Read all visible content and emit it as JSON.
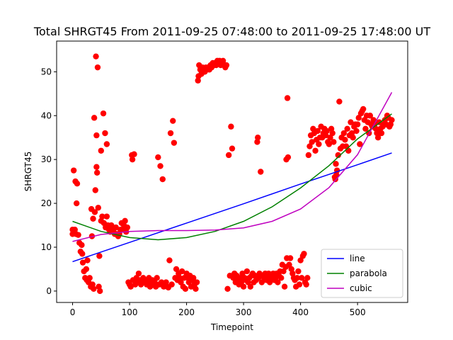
{
  "chart_data": {
    "type": "scatter",
    "title": "Total SHRGT45 From 2011-09-25 07:48:00 to 2011-09-25 17:48:00 UT",
    "xlabel": "Timepoint",
    "ylabel": "SHRGT45",
    "xlim": [
      -28,
      588
    ],
    "ylim": [
      -2.6,
      57
    ],
    "xticks": [
      0,
      100,
      200,
      300,
      400,
      500
    ],
    "yticks": [
      0,
      10,
      20,
      30,
      40,
      50
    ],
    "grid": false,
    "legend_position": "lower right",
    "points_color": "#ff0000",
    "series": [
      {
        "name": "line",
        "color": "#0000ff",
        "x": [
          0,
          100,
          200,
          300,
          400,
          500,
          560
        ],
        "y": [
          6.7,
          11.1,
          15.5,
          19.9,
          24.4,
          28.8,
          31.5
        ]
      },
      {
        "name": "parabola",
        "color": "#008000",
        "x": [
          0,
          50,
          100,
          150,
          200,
          250,
          300,
          350,
          400,
          450,
          500,
          560
        ],
        "y": [
          15.9,
          13.6,
          12.2,
          11.7,
          12.2,
          13.6,
          15.9,
          19.2,
          23.5,
          28.6,
          34.7,
          40.4
        ]
      },
      {
        "name": "cubic",
        "color": "#bf00bf",
        "x": [
          0,
          50,
          100,
          150,
          200,
          250,
          300,
          350,
          400,
          450,
          500,
          560
        ],
        "y": [
          11.3,
          12.9,
          13.6,
          13.8,
          13.8,
          13.9,
          14.4,
          15.9,
          18.7,
          23.6,
          31.1,
          45.3
        ]
      }
    ],
    "scatter_points": [
      [
        0,
        14
      ],
      [
        0,
        13
      ],
      [
        2,
        27.5
      ],
      [
        4,
        14
      ],
      [
        5,
        25
      ],
      [
        6,
        13
      ],
      [
        7,
        20
      ],
      [
        8,
        24.5
      ],
      [
        10,
        12.8
      ],
      [
        12,
        11
      ],
      [
        14,
        9
      ],
      [
        16,
        10.5
      ],
      [
        17,
        8.5
      ],
      [
        18,
        6.5
      ],
      [
        20,
        4.5
      ],
      [
        22,
        3
      ],
      [
        24,
        5
      ],
      [
        25,
        2.5
      ],
      [
        26,
        7
      ],
      [
        28,
        2
      ],
      [
        30,
        3
      ],
      [
        32,
        1
      ],
      [
        33,
        18.7
      ],
      [
        34,
        12.5
      ],
      [
        35,
        1.5
      ],
      [
        36,
        16.5
      ],
      [
        37,
        0.5
      ],
      [
        38,
        39.5
      ],
      [
        39,
        18
      ],
      [
        40,
        23
      ],
      [
        41,
        53.5
      ],
      [
        42,
        28.3
      ],
      [
        42,
        35.5
      ],
      [
        43,
        27
      ],
      [
        44,
        51
      ],
      [
        45,
        19
      ],
      [
        46,
        1
      ],
      [
        47,
        8
      ],
      [
        48,
        0
      ],
      [
        50,
        32
      ],
      [
        50,
        16
      ],
      [
        52,
        17
      ],
      [
        54,
        40.5
      ],
      [
        55,
        15.5
      ],
      [
        57,
        36
      ],
      [
        58,
        14.5
      ],
      [
        60,
        33.5
      ],
      [
        60,
        17
      ],
      [
        62,
        15
      ],
      [
        64,
        14
      ],
      [
        66,
        13.5
      ],
      [
        68,
        15
      ],
      [
        70,
        14
      ],
      [
        72,
        13.5
      ],
      [
        74,
        13
      ],
      [
        76,
        14.5
      ],
      [
        78,
        13
      ],
      [
        80,
        12.5
      ],
      [
        82,
        13
      ],
      [
        84,
        14
      ],
      [
        86,
        15.5
      ],
      [
        88,
        14
      ],
      [
        90,
        15
      ],
      [
        92,
        16
      ],
      [
        94,
        13.5
      ],
      [
        96,
        14.5
      ],
      [
        98,
        2
      ],
      [
        100,
        1.5
      ],
      [
        102,
        1
      ],
      [
        104,
        31
      ],
      [
        105,
        30
      ],
      [
        106,
        2.5
      ],
      [
        108,
        31.2
      ],
      [
        110,
        1.5
      ],
      [
        112,
        3
      ],
      [
        114,
        2
      ],
      [
        116,
        4
      ],
      [
        118,
        2.5
      ],
      [
        120,
        1.5
      ],
      [
        122,
        2
      ],
      [
        124,
        3
      ],
      [
        126,
        2
      ],
      [
        128,
        2.5
      ],
      [
        130,
        1.5
      ],
      [
        132,
        2
      ],
      [
        134,
        3
      ],
      [
        136,
        1
      ],
      [
        138,
        2
      ],
      [
        140,
        2.5
      ],
      [
        142,
        1.5
      ],
      [
        144,
        2
      ],
      [
        146,
        1
      ],
      [
        148,
        3
      ],
      [
        150,
        30.5
      ],
      [
        152,
        1.5
      ],
      [
        154,
        28.5
      ],
      [
        156,
        2
      ],
      [
        158,
        25.5
      ],
      [
        160,
        1
      ],
      [
        162,
        1.5
      ],
      [
        164,
        2
      ],
      [
        166,
        1
      ],
      [
        168,
        0.8
      ],
      [
        170,
        7
      ],
      [
        172,
        36
      ],
      [
        174,
        1.5
      ],
      [
        176,
        38.8
      ],
      [
        178,
        33.8
      ],
      [
        180,
        3
      ],
      [
        182,
        5
      ],
      [
        184,
        2.5
      ],
      [
        186,
        4
      ],
      [
        188,
        3
      ],
      [
        190,
        2
      ],
      [
        192,
        4.5
      ],
      [
        194,
        1
      ],
      [
        196,
        3
      ],
      [
        198,
        0.5
      ],
      [
        200,
        4
      ],
      [
        202,
        3
      ],
      [
        204,
        2
      ],
      [
        206,
        3.5
      ],
      [
        208,
        1
      ],
      [
        210,
        2.5
      ],
      [
        212,
        3
      ],
      [
        214,
        1.5
      ],
      [
        216,
        0.5
      ],
      [
        218,
        2
      ],
      [
        220,
        48
      ],
      [
        221,
        49
      ],
      [
        222,
        51.5
      ],
      [
        224,
        50.5
      ],
      [
        226,
        49.5
      ],
      [
        228,
        51
      ],
      [
        230,
        50.5
      ],
      [
        232,
        50
      ],
      [
        234,
        51
      ],
      [
        236,
        50.5
      ],
      [
        238,
        51
      ],
      [
        240,
        50.5
      ],
      [
        242,
        51.5
      ],
      [
        244,
        51
      ],
      [
        246,
        52
      ],
      [
        248,
        51.5
      ],
      [
        250,
        52
      ],
      [
        252,
        51.5
      ],
      [
        254,
        52.5
      ],
      [
        256,
        52
      ],
      [
        258,
        52.5
      ],
      [
        260,
        51.5
      ],
      [
        262,
        52
      ],
      [
        264,
        52.5
      ],
      [
        266,
        51.5
      ],
      [
        268,
        51
      ],
      [
        270,
        51.5
      ],
      [
        272,
        0.5
      ],
      [
        274,
        31
      ],
      [
        276,
        3.5
      ],
      [
        278,
        37.5
      ],
      [
        280,
        32.5
      ],
      [
        282,
        3
      ],
      [
        284,
        4
      ],
      [
        286,
        2
      ],
      [
        288,
        3.5
      ],
      [
        290,
        2.5
      ],
      [
        292,
        1.5
      ],
      [
        294,
        3
      ],
      [
        296,
        2
      ],
      [
        298,
        4
      ],
      [
        300,
        1
      ],
      [
        302,
        3
      ],
      [
        304,
        2.5
      ],
      [
        306,
        4.5
      ],
      [
        308,
        2
      ],
      [
        310,
        3
      ],
      [
        312,
        1
      ],
      [
        314,
        3.5
      ],
      [
        316,
        4
      ],
      [
        318,
        2
      ],
      [
        320,
        3.5
      ],
      [
        322,
        2.5
      ],
      [
        324,
        34
      ],
      [
        325,
        35
      ],
      [
        326,
        3
      ],
      [
        328,
        4
      ],
      [
        330,
        27.2
      ],
      [
        332,
        2
      ],
      [
        334,
        3.5
      ],
      [
        336,
        3
      ],
      [
        338,
        4
      ],
      [
        340,
        2.5
      ],
      [
        342,
        3.5
      ],
      [
        344,
        4
      ],
      [
        346,
        2
      ],
      [
        348,
        3
      ],
      [
        350,
        3.5
      ],
      [
        352,
        4
      ],
      [
        354,
        2.5
      ],
      [
        356,
        3
      ],
      [
        358,
        4
      ],
      [
        360,
        2
      ],
      [
        362,
        3.5
      ],
      [
        364,
        4.5
      ],
      [
        366,
        3
      ],
      [
        368,
        6
      ],
      [
        370,
        4.5
      ],
      [
        372,
        1
      ],
      [
        374,
        5.5
      ],
      [
        375,
        30
      ],
      [
        376,
        7.5
      ],
      [
        377,
        44
      ],
      [
        378,
        30.5
      ],
      [
        380,
        6
      ],
      [
        382,
        7.5
      ],
      [
        384,
        5
      ],
      [
        386,
        4
      ],
      [
        388,
        3
      ],
      [
        390,
        2.5
      ],
      [
        392,
        1
      ],
      [
        394,
        3
      ],
      [
        396,
        4.5
      ],
      [
        398,
        1.5
      ],
      [
        400,
        7
      ],
      [
        402,
        3
      ],
      [
        404,
        8
      ],
      [
        406,
        8.5
      ],
      [
        408,
        2
      ],
      [
        410,
        1.5
      ],
      [
        412,
        3
      ],
      [
        414,
        31
      ],
      [
        416,
        33
      ],
      [
        418,
        35.5
      ],
      [
        420,
        34
      ],
      [
        422,
        37
      ],
      [
        424,
        36
      ],
      [
        426,
        32
      ],
      [
        428,
        34.5
      ],
      [
        430,
        36.5
      ],
      [
        432,
        33.5
      ],
      [
        434,
        35
      ],
      [
        436,
        37.5
      ],
      [
        438,
        35
      ],
      [
        440,
        36
      ],
      [
        442,
        37
      ],
      [
        444,
        35.5
      ],
      [
        446,
        36.5
      ],
      [
        448,
        34
      ],
      [
        450,
        33.5
      ],
      [
        452,
        35
      ],
      [
        454,
        37
      ],
      [
        456,
        36
      ],
      [
        458,
        34
      ],
      [
        460,
        26
      ],
      [
        461,
        25.5
      ],
      [
        462,
        29
      ],
      [
        463,
        26.5
      ],
      [
        464,
        27.5
      ],
      [
        466,
        31
      ],
      [
        468,
        43.2
      ],
      [
        470,
        32.5
      ],
      [
        472,
        35
      ],
      [
        474,
        33
      ],
      [
        476,
        36
      ],
      [
        478,
        34.5
      ],
      [
        480,
        33
      ],
      [
        482,
        37
      ],
      [
        484,
        32
      ],
      [
        486,
        35.5
      ],
      [
        488,
        38.5
      ],
      [
        490,
        36
      ],
      [
        492,
        35
      ],
      [
        494,
        37.5
      ],
      [
        496,
        38
      ],
      [
        498,
        36.5
      ],
      [
        500,
        38
      ],
      [
        502,
        39.5
      ],
      [
        504,
        33.5
      ],
      [
        506,
        40.5
      ],
      [
        508,
        41
      ],
      [
        510,
        41.5
      ],
      [
        512,
        39
      ],
      [
        514,
        37
      ],
      [
        516,
        40
      ],
      [
        518,
        38.5
      ],
      [
        520,
        36
      ],
      [
        522,
        40
      ],
      [
        524,
        38
      ],
      [
        526,
        37.5
      ],
      [
        528,
        39
      ],
      [
        530,
        38
      ],
      [
        532,
        37
      ],
      [
        534,
        36
      ],
      [
        536,
        35
      ],
      [
        538,
        38.5
      ],
      [
        540,
        37
      ],
      [
        542,
        36
      ],
      [
        544,
        37.5
      ],
      [
        546,
        38
      ],
      [
        548,
        39
      ],
      [
        550,
        38
      ],
      [
        552,
        40
      ],
      [
        554,
        39.5
      ],
      [
        556,
        37.5
      ],
      [
        558,
        38
      ],
      [
        560,
        39
      ]
    ]
  }
}
